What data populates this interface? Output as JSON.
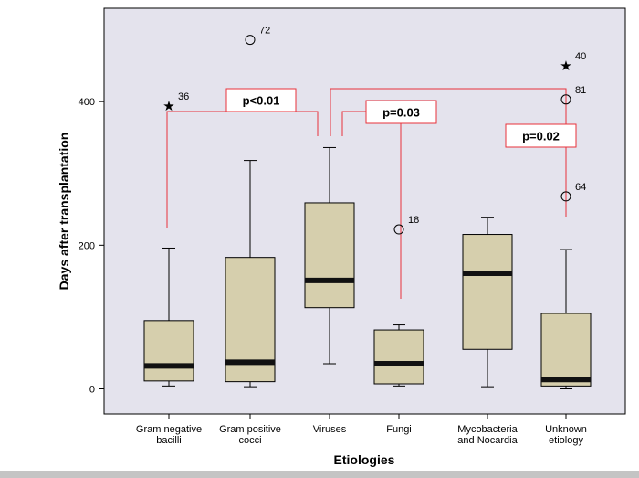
{
  "colors": {
    "plot_bg": "#e4e3ed",
    "box_fill": "#d6cfad",
    "median": "#111111",
    "bracket": "#e8323a",
    "axis": "#000000"
  },
  "chart_data": {
    "type": "box",
    "xlabel": "Etiologies",
    "ylabel": "Days after transplantation",
    "ylim": [
      -35,
      530
    ],
    "yticks": [
      0,
      200,
      400
    ],
    "categories": [
      [
        "Gram negative",
        "bacilli"
      ],
      [
        "Gram positive",
        "cocci"
      ],
      [
        "Viruses"
      ],
      [
        "Fungi"
      ],
      [
        "Mycobacteria",
        "and Nocardia"
      ],
      [
        "Unknown",
        "etiology"
      ]
    ],
    "boxes": [
      {
        "min": 4,
        "q1": 11,
        "median": 32,
        "q3": 95,
        "max": 196
      },
      {
        "min": 3,
        "q1": 10,
        "median": 37,
        "q3": 183,
        "max": 318
      },
      {
        "min": 35,
        "q1": 113,
        "median": 151,
        "q3": 259,
        "max": 336
      },
      {
        "min": 4,
        "q1": 7,
        "median": 35,
        "q3": 82,
        "max": 89
      },
      {
        "min": 3,
        "q1": 55,
        "median": 161,
        "q3": 215,
        "max": 239
      },
      {
        "min": 0,
        "q1": 4,
        "median": 13,
        "q3": 105,
        "max": 194
      }
    ],
    "outliers": [
      {
        "category": 0,
        "value": 394,
        "marker": "star",
        "label": "36"
      },
      {
        "category": 1,
        "value": 486,
        "marker": "circle",
        "label": "72"
      },
      {
        "category": 3,
        "value": 222,
        "marker": "circle",
        "label": "18"
      },
      {
        "category": 5,
        "value": 450,
        "marker": "star",
        "label": "40"
      },
      {
        "category": 5,
        "value": 403,
        "marker": "circle",
        "label": "81"
      },
      {
        "category": 5,
        "value": 268,
        "marker": "circle",
        "label": "64"
      }
    ],
    "comparisons": [
      {
        "label": "p<0.01",
        "groups": [
          0,
          2
        ]
      },
      {
        "label": "p=0.03",
        "groups": [
          2,
          3
        ]
      },
      {
        "label": "p=0.02",
        "groups": [
          2,
          5
        ]
      }
    ]
  }
}
